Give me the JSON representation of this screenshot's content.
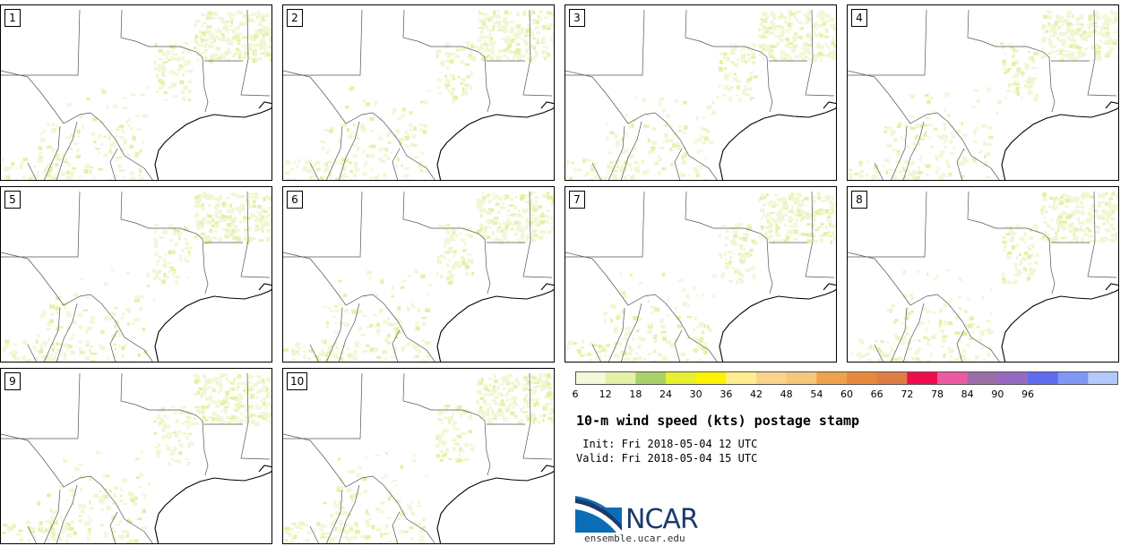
{
  "panels": [
    {
      "label": "1"
    },
    {
      "label": "2"
    },
    {
      "label": "3"
    },
    {
      "label": "4"
    },
    {
      "label": "5"
    },
    {
      "label": "6"
    },
    {
      "label": "7"
    },
    {
      "label": "8"
    },
    {
      "label": "9"
    },
    {
      "label": "10"
    }
  ],
  "colorbar": {
    "ticks": [
      "6",
      "12",
      "18",
      "24",
      "30",
      "36",
      "42",
      "48",
      "54",
      "60",
      "66",
      "72",
      "78",
      "84",
      "90",
      "96"
    ],
    "colors": [
      "#f4f8dc",
      "#e4f1a9",
      "#a9d16a",
      "#e6f030",
      "#fff200",
      "#ffee8f",
      "#f9d38a",
      "#f5c77a",
      "#eea24a",
      "#e78a3c",
      "#e07c45",
      "#ee0d4b",
      "#ec5aa1",
      "#9b6ea7",
      "#966ac0",
      "#5f6cf0",
      "#7f97f5",
      "#b3c9fb"
    ]
  },
  "title": "10-m wind speed (kts) postage stamp",
  "init": " Init: Fri 2018-05-04 12 UTC",
  "valid": "Valid: Fri 2018-05-04 15 UTC",
  "logo": {
    "text": "NCAR",
    "site": "ensemble.ucar.edu",
    "colors": {
      "blue": "#0a6db6",
      "navy": "#1c3a6b"
    }
  }
}
